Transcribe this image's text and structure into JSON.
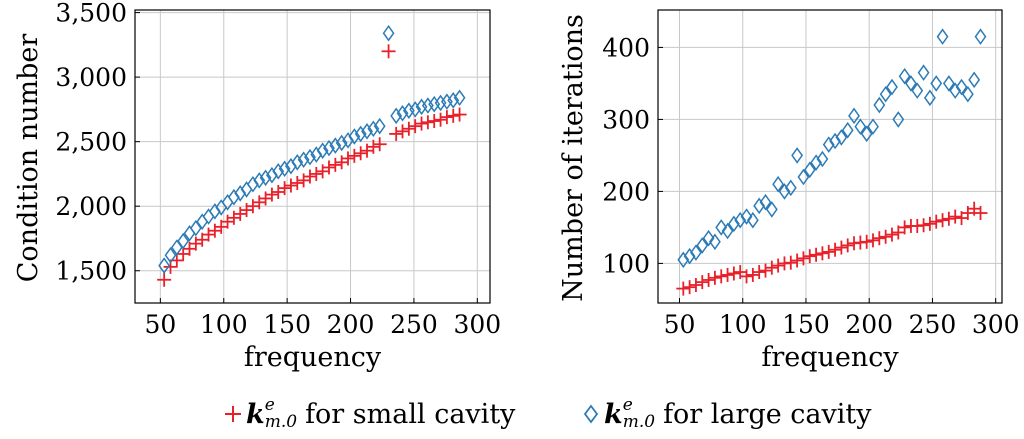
{
  "colors": {
    "small": "#e8202a",
    "large": "#2c7bb6"
  },
  "legend": {
    "small": {
      "label": "for small cavity"
    },
    "large": {
      "label": "for large cavity"
    },
    "k": "k",
    "sup": "e",
    "sub": "m.0"
  },
  "chart_data": [
    {
      "type": "scatter",
      "xlabel": "frequency",
      "ylabel": "Condition number",
      "xlim": [
        30,
        310
      ],
      "ylim": [
        1250,
        3520
      ],
      "xticks": [
        50,
        100,
        150,
        200,
        250,
        300
      ],
      "xtick_labels": [
        "50",
        "100",
        "150",
        "200",
        "250",
        "300"
      ],
      "yticks": [
        1500,
        2000,
        2500,
        3000,
        3500
      ],
      "ytick_labels": [
        "1,500",
        "2,000",
        "2,500",
        "3,000",
        "3,500"
      ],
      "grid": true,
      "series": [
        {
          "key": "small",
          "marker": "plus",
          "x": [
            53,
            58,
            63,
            68,
            73,
            78,
            83,
            88,
            93,
            98,
            103,
            108,
            113,
            118,
            123,
            128,
            133,
            138,
            143,
            148,
            153,
            158,
            163,
            168,
            173,
            178,
            183,
            188,
            193,
            198,
            203,
            208,
            213,
            218,
            223,
            230,
            236,
            241,
            246,
            251,
            256,
            261,
            266,
            271,
            276,
            281,
            286
          ],
          "y": [
            1430,
            1530,
            1580,
            1630,
            1670,
            1710,
            1740,
            1780,
            1810,
            1840,
            1880,
            1910,
            1940,
            1970,
            2000,
            2030,
            2060,
            2090,
            2110,
            2140,
            2160,
            2180,
            2200,
            2230,
            2250,
            2270,
            2300,
            2320,
            2340,
            2370,
            2390,
            2410,
            2430,
            2460,
            2480,
            3200,
            2560,
            2580,
            2600,
            2620,
            2640,
            2650,
            2660,
            2670,
            2690,
            2700,
            2710
          ]
        },
        {
          "key": "large",
          "marker": "diamond",
          "x": [
            53,
            58,
            63,
            68,
            73,
            78,
            83,
            88,
            93,
            98,
            103,
            108,
            113,
            118,
            123,
            128,
            133,
            138,
            143,
            148,
            153,
            158,
            163,
            168,
            173,
            178,
            183,
            188,
            193,
            198,
            203,
            208,
            213,
            218,
            223,
            230,
            236,
            241,
            246,
            251,
            256,
            261,
            266,
            271,
            276,
            281,
            286
          ],
          "y": [
            1540,
            1620,
            1680,
            1730,
            1790,
            1830,
            1880,
            1920,
            1960,
            1990,
            2030,
            2070,
            2100,
            2130,
            2170,
            2200,
            2220,
            2240,
            2270,
            2290,
            2310,
            2340,
            2360,
            2380,
            2400,
            2430,
            2450,
            2470,
            2490,
            2510,
            2540,
            2560,
            2580,
            2600,
            2620,
            3340,
            2700,
            2720,
            2740,
            2750,
            2770,
            2780,
            2790,
            2800,
            2810,
            2820,
            2840
          ]
        }
      ]
    },
    {
      "type": "scatter",
      "xlabel": "frequency",
      "ylabel": "Number of iterations",
      "xlim": [
        33,
        305
      ],
      "ylim": [
        45,
        452
      ],
      "xticks": [
        50,
        100,
        150,
        200,
        250,
        300
      ],
      "xtick_labels": [
        "50",
        "100",
        "150",
        "200",
        "250",
        "300"
      ],
      "yticks": [
        100,
        200,
        300,
        400
      ],
      "ytick_labels": [
        "100",
        "200",
        "300",
        "400"
      ],
      "grid": true,
      "series": [
        {
          "key": "small",
          "marker": "plus",
          "x": [
            53,
            58,
            63,
            68,
            73,
            78,
            83,
            88,
            93,
            98,
            103,
            108,
            113,
            118,
            123,
            128,
            133,
            138,
            143,
            148,
            153,
            158,
            163,
            168,
            173,
            178,
            183,
            188,
            193,
            198,
            203,
            208,
            213,
            218,
            223,
            228,
            233,
            238,
            243,
            248,
            253,
            258,
            263,
            268,
            273,
            278,
            283,
            288
          ],
          "y": [
            65,
            67,
            70,
            74,
            77,
            80,
            82,
            84,
            86,
            88,
            82,
            84,
            88,
            90,
            94,
            97,
            100,
            101,
            104,
            107,
            110,
            112,
            114,
            116,
            119,
            122,
            125,
            128,
            129,
            130,
            132,
            135,
            137,
            140,
            143,
            150,
            152,
            152,
            153,
            155,
            158,
            160,
            162,
            165,
            163,
            170,
            176,
            170
          ]
        },
        {
          "key": "large",
          "marker": "diamond",
          "x": [
            53,
            58,
            63,
            68,
            73,
            78,
            83,
            88,
            93,
            98,
            103,
            108,
            113,
            118,
            123,
            128,
            133,
            138,
            143,
            148,
            153,
            158,
            163,
            168,
            173,
            178,
            183,
            188,
            193,
            198,
            203,
            208,
            213,
            218,
            223,
            228,
            233,
            238,
            243,
            248,
            253,
            258,
            263,
            268,
            273,
            278,
            283,
            288
          ],
          "y": [
            105,
            110,
            115,
            125,
            135,
            130,
            150,
            145,
            155,
            160,
            165,
            160,
            180,
            185,
            175,
            210,
            200,
            205,
            250,
            220,
            230,
            240,
            245,
            265,
            270,
            275,
            285,
            305,
            290,
            280,
            290,
            320,
            335,
            345,
            300,
            360,
            350,
            340,
            365,
            330,
            350,
            415,
            350,
            340,
            345,
            335,
            355,
            415
          ]
        }
      ]
    }
  ]
}
